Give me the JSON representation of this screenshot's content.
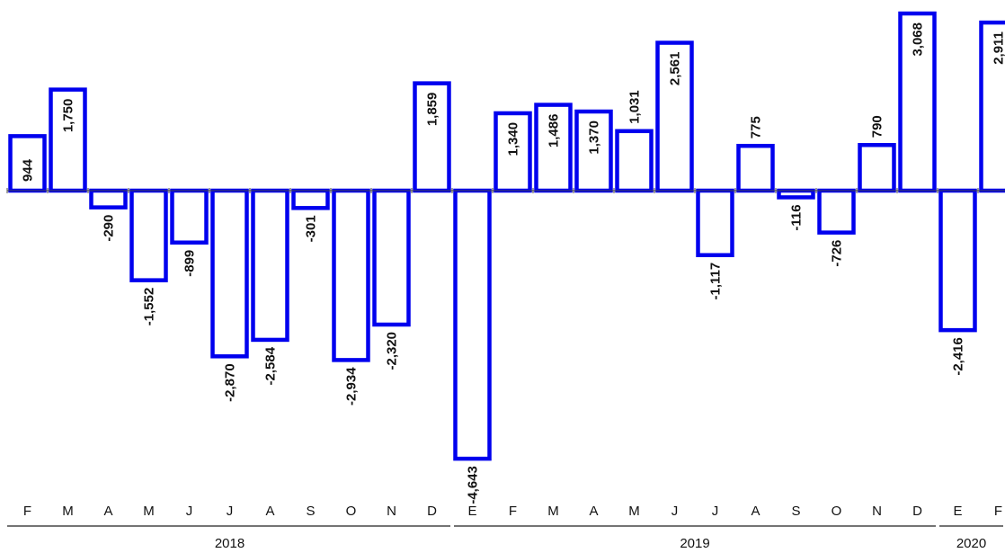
{
  "chart_data": {
    "type": "bar",
    "categories": [
      "F",
      "M",
      "A",
      "M",
      "J",
      "J",
      "A",
      "S",
      "O",
      "N",
      "D",
      "E",
      "F",
      "M",
      "A",
      "M",
      "J",
      "J",
      "A",
      "S",
      "O",
      "N",
      "D",
      "E",
      "F"
    ],
    "values": [
      944,
      1750,
      -290,
      -1552,
      -899,
      -2870,
      -2584,
      -301,
      -2934,
      -2320,
      1859,
      -4643,
      1340,
      1486,
      1370,
      1031,
      2561,
      -1117,
      775,
      -116,
      -726,
      790,
      3068,
      -2416,
      2911
    ],
    "value_labels": [
      "944",
      "1,750",
      "-290",
      "-1,552",
      "-899",
      "-2,870",
      "-2,584",
      "-301",
      "-2,934",
      "-2,320",
      "1,859",
      "-4,643",
      "1,340",
      "1,486",
      "1,370",
      "1,031",
      "2,561",
      "-1,117",
      "775",
      "-116",
      "-726",
      "790",
      "3,068",
      "-2,416",
      "2,911"
    ],
    "year_groups": [
      {
        "label": "2018",
        "start": 0,
        "end": 10
      },
      {
        "label": "2019",
        "start": 11,
        "end": 22
      },
      {
        "label": "2020",
        "start": 23,
        "end": 24
      }
    ],
    "ylim": [
      -4643,
      3068
    ],
    "bar_color": "#0000ee",
    "bar_fill": "#ffffff",
    "grid": false,
    "legend": "none",
    "title": "",
    "xlabel": "",
    "ylabel": ""
  }
}
